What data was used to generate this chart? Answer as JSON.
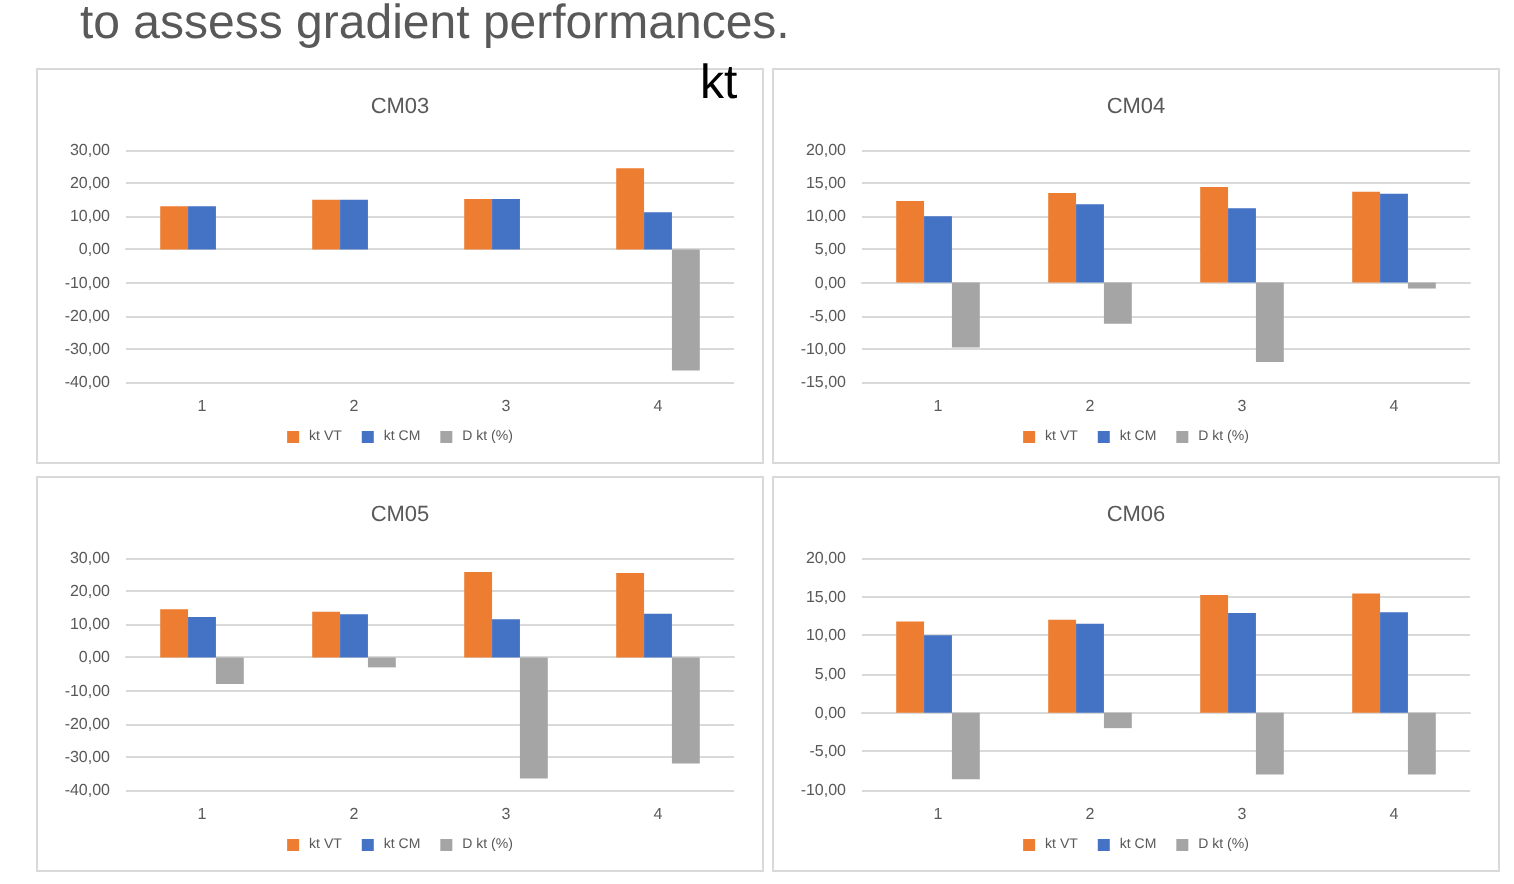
{
  "chart_data": [
    {
      "type": "bar",
      "title": "CM03",
      "annotations": [
        "to assess gradient performances.",
        "kt"
      ],
      "categories": [
        "1",
        "2",
        "3",
        "4"
      ],
      "series": [
        {
          "name": "kt VT",
          "color": "#ed7d31",
          "values": [
            13,
            15,
            15.2,
            24.5
          ]
        },
        {
          "name": "kt CM",
          "color": "#4472c4",
          "values": [
            13,
            15,
            15.2,
            11.2
          ]
        },
        {
          "name": "D kt (%)",
          "color": "#a5a5a5",
          "values": [
            0,
            0,
            0,
            -36.5
          ]
        }
      ],
      "ylim": [
        -40,
        30
      ],
      "yticks": [
        {
          "value": -40,
          "label": "-40,00"
        },
        {
          "value": -30,
          "label": "-30,00"
        },
        {
          "value": -20,
          "label": "-20,00"
        },
        {
          "value": -10,
          "label": "-10,00"
        },
        {
          "value": 0,
          "label": "0,00"
        },
        {
          "value": 10,
          "label": "10,00"
        },
        {
          "value": 20,
          "label": "20,00"
        },
        {
          "value": 30,
          "label": "30,00"
        }
      ],
      "grid": "y",
      "legend": "bottom"
    },
    {
      "type": "bar",
      "title": "CM04",
      "categories": [
        "1",
        "2",
        "3",
        "4"
      ],
      "series": [
        {
          "name": "kt VT",
          "color": "#ed7d31",
          "values": [
            12.3,
            13.5,
            14.4,
            13.7
          ]
        },
        {
          "name": "kt CM",
          "color": "#4472c4",
          "values": [
            10,
            11.8,
            11.2,
            13.4
          ]
        },
        {
          "name": "D kt (%)",
          "color": "#a5a5a5",
          "values": [
            -9.8,
            -6.2,
            -12,
            -0.9
          ]
        }
      ],
      "ylim": [
        -15,
        20
      ],
      "yticks": [
        {
          "value": -15,
          "label": "-15,00"
        },
        {
          "value": -10,
          "label": "-10,00"
        },
        {
          "value": -5,
          "label": "-5,00"
        },
        {
          "value": 0,
          "label": "0,00"
        },
        {
          "value": 5,
          "label": "5,00"
        },
        {
          "value": 10,
          "label": "10,00"
        },
        {
          "value": 15,
          "label": "15,00"
        },
        {
          "value": 20,
          "label": "20,00"
        }
      ],
      "grid": "y",
      "legend": "bottom"
    },
    {
      "type": "bar",
      "title": "CM05",
      "categories": [
        "1",
        "2",
        "3",
        "4"
      ],
      "series": [
        {
          "name": "kt VT",
          "color": "#ed7d31",
          "values": [
            14.5,
            13.8,
            25.8,
            25.5
          ]
        },
        {
          "name": "kt CM",
          "color": "#4472c4",
          "values": [
            12.2,
            13,
            11.5,
            13.2
          ]
        },
        {
          "name": "D kt (%)",
          "color": "#a5a5a5",
          "values": [
            -8,
            -3,
            -36.5,
            -32
          ]
        }
      ],
      "ylim": [
        -40,
        30
      ],
      "yticks": [
        {
          "value": -40,
          "label": "-40,00"
        },
        {
          "value": -30,
          "label": "-30,00"
        },
        {
          "value": -20,
          "label": "-20,00"
        },
        {
          "value": -10,
          "label": "-10,00"
        },
        {
          "value": 0,
          "label": "0,00"
        },
        {
          "value": 10,
          "label": "10,00"
        },
        {
          "value": 20,
          "label": "20,00"
        },
        {
          "value": 30,
          "label": "30,00"
        }
      ],
      "grid": "y",
      "legend": "bottom"
    },
    {
      "type": "bar",
      "title": "CM06",
      "categories": [
        "1",
        "2",
        "3",
        "4"
      ],
      "series": [
        {
          "name": "kt VT",
          "color": "#ed7d31",
          "values": [
            11.8,
            12,
            15.2,
            15.4
          ]
        },
        {
          "name": "kt CM",
          "color": "#4472c4",
          "values": [
            10,
            11.5,
            12.9,
            13
          ]
        },
        {
          "name": "D kt (%)",
          "color": "#a5a5a5",
          "values": [
            -8.6,
            -2,
            -8,
            -8
          ]
        }
      ],
      "ylim": [
        -10,
        20
      ],
      "yticks": [
        {
          "value": -10,
          "label": "-10,00"
        },
        {
          "value": -5,
          "label": "-5,00"
        },
        {
          "value": 0,
          "label": "0,00"
        },
        {
          "value": 5,
          "label": "5,00"
        },
        {
          "value": 10,
          "label": "10,00"
        },
        {
          "value": 15,
          "label": "15,00"
        },
        {
          "value": 20,
          "label": "20,00"
        }
      ],
      "grid": "y",
      "legend": "bottom"
    }
  ]
}
